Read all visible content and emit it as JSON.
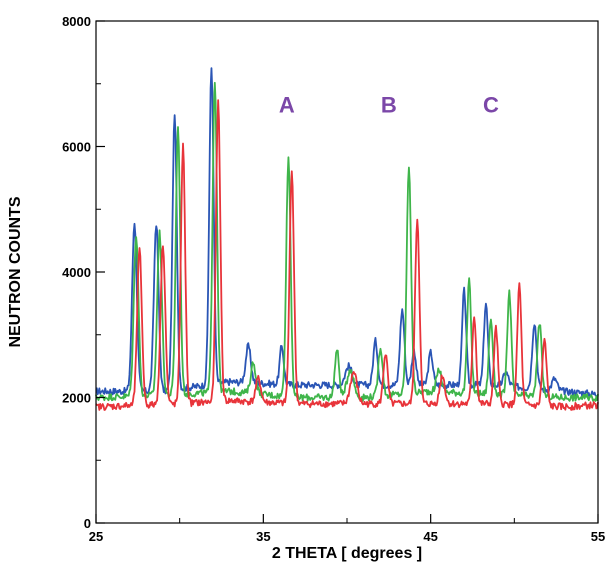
{
  "chart_data": {
    "type": "line",
    "xlabel": "2 THETA [ degrees ]",
    "ylabel": "NEUTRON COUNTS",
    "xlim": [
      25,
      55
    ],
    "ylim": [
      0,
      8000
    ],
    "x_ticks": [
      25,
      35,
      45,
      55
    ],
    "x_minor_ticks": [
      30,
      40,
      50
    ],
    "y_ticks": [
      0,
      2000,
      4000,
      6000,
      8000
    ],
    "y_minor_ticks": [
      1000,
      3000,
      5000,
      7000
    ],
    "grid": false,
    "legend": "none",
    "annotations": [
      {
        "text": "A",
        "x": 36.4,
        "y": 6540
      },
      {
        "text": "B",
        "x": 42.5,
        "y": 6540
      },
      {
        "text": "C",
        "x": 48.6,
        "y": 6540
      }
    ],
    "annotation_color": "#7b47a8",
    "series": [
      {
        "color": "#2a55b5",
        "baseline": [
          [
            25,
            2100
          ],
          [
            29,
            2100
          ],
          [
            33,
            2250
          ],
          [
            37,
            2200
          ],
          [
            41,
            2200
          ],
          [
            45,
            2200
          ],
          [
            49,
            2200
          ],
          [
            53,
            2100
          ],
          [
            55,
            2050
          ]
        ],
        "peaks": [
          [
            27.3,
            4800,
            0.14
          ],
          [
            28.6,
            4780,
            0.14
          ],
          [
            29.7,
            6500,
            0.13
          ],
          [
            31.9,
            7250,
            0.13
          ],
          [
            34.1,
            2820,
            0.15
          ],
          [
            36.1,
            2820,
            0.12
          ],
          [
            40.1,
            2500,
            0.2
          ],
          [
            41.7,
            2900,
            0.13
          ],
          [
            43.3,
            3400,
            0.13
          ],
          [
            44.0,
            2750,
            0.13
          ],
          [
            45.0,
            2720,
            0.13
          ],
          [
            47.0,
            3700,
            0.12
          ],
          [
            48.3,
            3500,
            0.12
          ],
          [
            49.5,
            2400,
            0.15
          ],
          [
            51.2,
            3200,
            0.13
          ],
          [
            52.4,
            2300,
            0.15
          ]
        ]
      },
      {
        "color": "#3fb54a",
        "baseline": [
          [
            25,
            2000
          ],
          [
            30,
            2050
          ],
          [
            33,
            2100
          ],
          [
            37,
            2000
          ],
          [
            41,
            2000
          ],
          [
            45,
            2100
          ],
          [
            49,
            2050
          ],
          [
            53,
            2000
          ],
          [
            55,
            2000
          ]
        ],
        "peaks": [
          [
            27.4,
            4600,
            0.14
          ],
          [
            28.8,
            4620,
            0.14
          ],
          [
            29.9,
            6300,
            0.13
          ],
          [
            32.1,
            7050,
            0.13
          ],
          [
            34.4,
            2550,
            0.15
          ],
          [
            36.5,
            5820,
            0.13
          ],
          [
            39.4,
            2750,
            0.13
          ],
          [
            40.2,
            2450,
            0.2
          ],
          [
            42.0,
            2800,
            0.13
          ],
          [
            43.7,
            5700,
            0.13
          ],
          [
            45.5,
            2450,
            0.15
          ],
          [
            47.3,
            3850,
            0.12
          ],
          [
            48.6,
            3250,
            0.12
          ],
          [
            49.7,
            3680,
            0.12
          ],
          [
            51.5,
            3200,
            0.13
          ]
        ]
      },
      {
        "color": "#e8343a",
        "baseline": [
          [
            25,
            1850
          ],
          [
            30,
            1900
          ],
          [
            33,
            1950
          ],
          [
            37,
            1900
          ],
          [
            41,
            1900
          ],
          [
            45,
            1900
          ],
          [
            49,
            1900
          ],
          [
            53,
            1850
          ],
          [
            55,
            1880
          ]
        ],
        "peaks": [
          [
            27.6,
            4350,
            0.14
          ],
          [
            29.0,
            4450,
            0.14
          ],
          [
            30.2,
            6000,
            0.13
          ],
          [
            32.3,
            6700,
            0.13
          ],
          [
            34.7,
            2300,
            0.15
          ],
          [
            36.7,
            5620,
            0.13
          ],
          [
            40.4,
            2400,
            0.2
          ],
          [
            42.3,
            2700,
            0.13
          ],
          [
            44.2,
            4850,
            0.13
          ],
          [
            45.7,
            2350,
            0.15
          ],
          [
            47.6,
            3300,
            0.12
          ],
          [
            48.9,
            3100,
            0.12
          ],
          [
            50.3,
            3800,
            0.12
          ],
          [
            51.8,
            2900,
            0.13
          ]
        ]
      }
    ]
  }
}
